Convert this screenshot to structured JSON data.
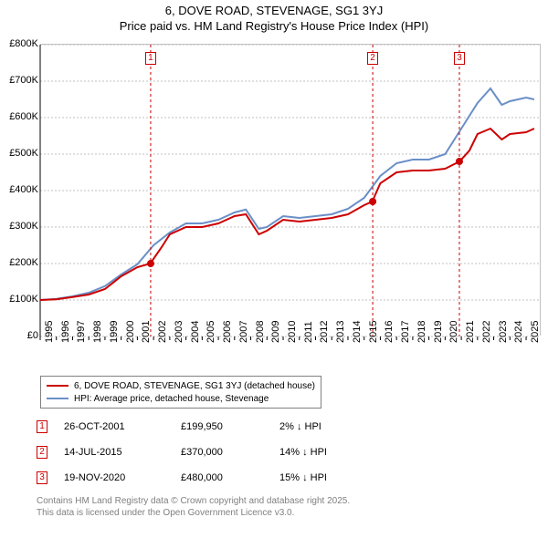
{
  "title_line1": "6, DOVE ROAD, STEVENAGE, SG1 3YJ",
  "title_line2": "Price paid vs. HM Land Registry's House Price Index (HPI)",
  "chart": {
    "type": "line",
    "background_color": "#ffffff",
    "grid_color": "#c0c0c0",
    "label_fontsize": 11,
    "xlim": [
      1995,
      2025.9
    ],
    "ylim": [
      0,
      800000
    ],
    "ytick_step": 100000,
    "yformat": "£{n}K",
    "yticks": [
      "£0",
      "£100K",
      "£200K",
      "£300K",
      "£400K",
      "£500K",
      "£600K",
      "£700K",
      "£800K"
    ],
    "xticks": [
      1995,
      1996,
      1997,
      1998,
      1999,
      2000,
      2001,
      2002,
      2003,
      2004,
      2005,
      2006,
      2007,
      2008,
      2009,
      2010,
      2011,
      2012,
      2013,
      2014,
      2015,
      2016,
      2017,
      2018,
      2019,
      2020,
      2021,
      2022,
      2023,
      2024,
      2025
    ],
    "series": [
      {
        "name": "price_paid",
        "color": "#cc0000",
        "line_width": 2,
        "x": [
          1995,
          1996,
          1997,
          1998,
          1999,
          2000,
          2001,
          2001.8,
          2002.5,
          2003,
          2004,
          2005,
          2006,
          2007,
          2007.7,
          2008.5,
          2009,
          2010,
          2011,
          2012,
          2013,
          2014,
          2015,
          2015.5,
          2016,
          2017,
          2018,
          2019,
          2020,
          2020.9,
          2021.5,
          2022,
          2022.8,
          2023.5,
          2024,
          2025,
          2025.5
        ],
        "y": [
          100000,
          102000,
          108000,
          115000,
          130000,
          165000,
          190000,
          200000,
          245000,
          280000,
          300000,
          300000,
          310000,
          330000,
          335000,
          280000,
          290000,
          320000,
          315000,
          320000,
          325000,
          335000,
          360000,
          370000,
          420000,
          450000,
          455000,
          455000,
          460000,
          480000,
          510000,
          555000,
          570000,
          540000,
          555000,
          560000,
          570000
        ]
      },
      {
        "name": "hpi",
        "color": "#6a8fc7",
        "line_width": 2,
        "x": [
          1995,
          1996,
          1997,
          1998,
          1999,
          2000,
          2001,
          2002,
          2003,
          2004,
          2005,
          2006,
          2007,
          2007.7,
          2008.5,
          2009,
          2010,
          2011,
          2012,
          2013,
          2014,
          2015,
          2016,
          2017,
          2018,
          2019,
          2020,
          2021,
          2022,
          2022.8,
          2023.5,
          2024,
          2025,
          2025.5
        ],
        "y": [
          100000,
          103000,
          110000,
          120000,
          138000,
          170000,
          198000,
          250000,
          285000,
          310000,
          310000,
          320000,
          340000,
          348000,
          295000,
          300000,
          330000,
          325000,
          330000,
          335000,
          350000,
          380000,
          440000,
          475000,
          485000,
          485000,
          500000,
          570000,
          640000,
          680000,
          635000,
          645000,
          655000,
          650000
        ]
      }
    ],
    "sale_markers": [
      {
        "n": "1",
        "color": "#cc0000",
        "x": 2001.82,
        "y": 199950
      },
      {
        "n": "2",
        "color": "#cc0000",
        "x": 2015.53,
        "y": 370000
      },
      {
        "n": "3",
        "color": "#cc0000",
        "x": 2020.88,
        "y": 480000
      }
    ]
  },
  "legend": {
    "rows": [
      {
        "color": "#cc0000",
        "label": "6, DOVE ROAD, STEVENAGE, SG1 3YJ (detached house)"
      },
      {
        "color": "#6a8fc7",
        "label": "HPI: Average price, detached house, Stevenage"
      }
    ]
  },
  "sales_table": {
    "rows": [
      {
        "n": "1",
        "color": "#cc0000",
        "date": "26-OCT-2001",
        "price": "£199,950",
        "diff": "2% ↓ HPI"
      },
      {
        "n": "2",
        "color": "#cc0000",
        "date": "14-JUL-2015",
        "price": "£370,000",
        "diff": "14% ↓ HPI"
      },
      {
        "n": "3",
        "color": "#cc0000",
        "date": "19-NOV-2020",
        "price": "£480,000",
        "diff": "15% ↓ HPI"
      }
    ]
  },
  "footer": {
    "line1": "Contains HM Land Registry data © Crown copyright and database right 2025.",
    "line2": "This data is licensed under the Open Government Licence v3.0."
  }
}
